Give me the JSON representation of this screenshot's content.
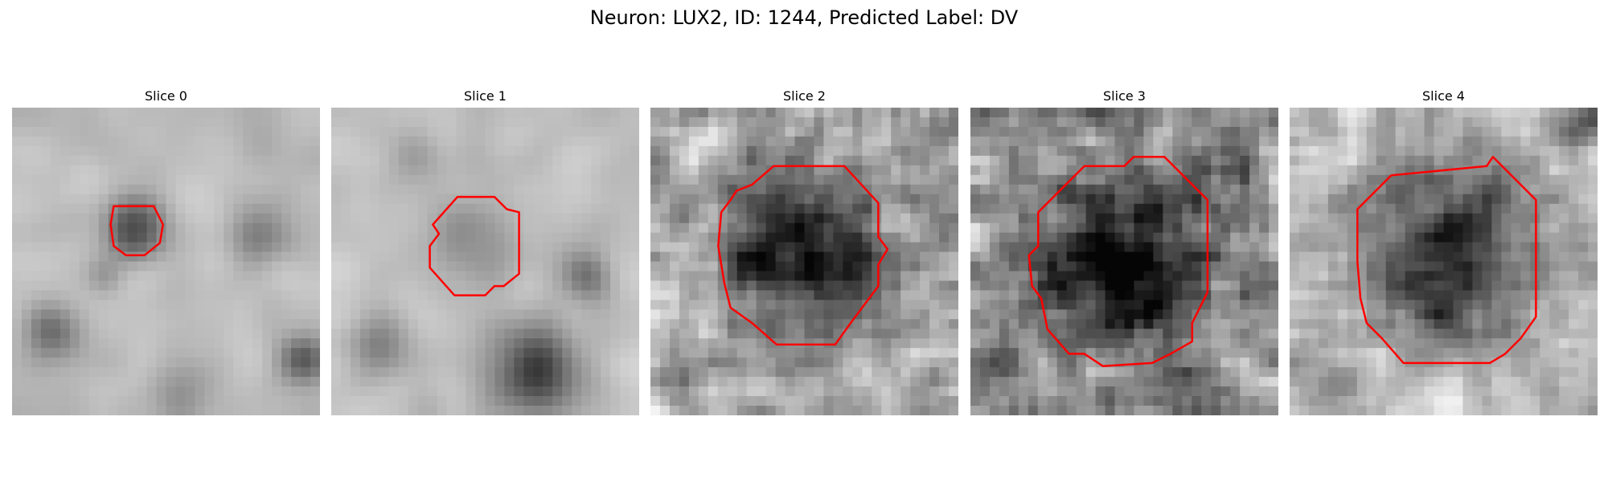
{
  "figure": {
    "title": "Neuron: LUX2, ID: 1244, Predicted Label: DV"
  },
  "panels": [
    {
      "title": "Slice 0",
      "contour_color": "#ff0000"
    },
    {
      "title": "Slice 1",
      "contour_color": "#ff0000"
    },
    {
      "title": "Slice 2",
      "contour_color": "#ff0000"
    },
    {
      "title": "Slice 3",
      "contour_color": "#ff0000"
    },
    {
      "title": "Slice 4",
      "contour_color": "#ff0000"
    }
  ]
}
